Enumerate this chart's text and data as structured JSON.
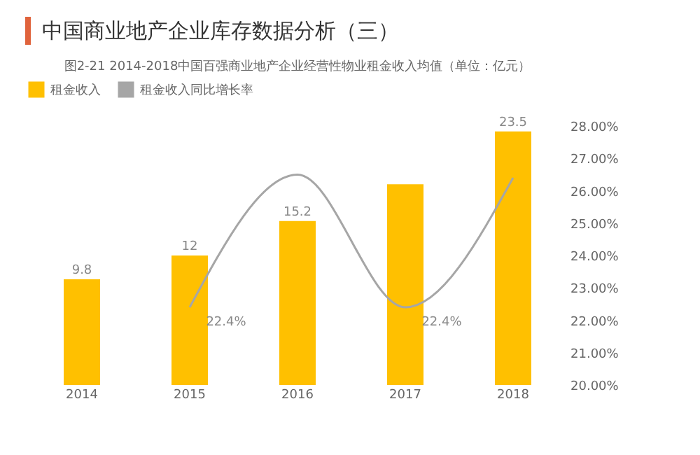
{
  "chart_data": {
    "type": "bar",
    "title": "中国商业地产企业库存数据分析（三）",
    "subtitle": "图2-21 2014-2018中国百强商业地产企业经营性物业租金收入均值（单位：亿元）",
    "categories": [
      "2014",
      "2015",
      "2016",
      "2017",
      "2018"
    ],
    "series": [
      {
        "name": "租金收入",
        "color": "#ffc000",
        "values": [
          9.8,
          12,
          15.2,
          18.6,
          23.5
        ],
        "value_labels": [
          "9.8",
          "12",
          "15.2",
          null,
          "23.5"
        ]
      },
      {
        "name": "租金收入同比增长率",
        "type": "line",
        "axis": "y2",
        "color": "#a6a6a6",
        "values": [
          null,
          22.4,
          26.5,
          22.4,
          26.4
        ],
        "value_labels": [
          null,
          "22.4%",
          null,
          "22.4%",
          null
        ]
      }
    ],
    "y2lim": [
      20,
      28
    ],
    "y2ticks": [
      {
        "value": 20,
        "label": "20.00%"
      },
      {
        "value": 21,
        "label": "21.00%"
      },
      {
        "value": 22,
        "label": "22.00%"
      },
      {
        "value": 23,
        "label": "23.00%"
      },
      {
        "value": 24,
        "label": "24.00%"
      },
      {
        "value": 25,
        "label": "25.00%"
      },
      {
        "value": 26,
        "label": "26.00%"
      },
      {
        "value": 27,
        "label": "27.00%"
      },
      {
        "value": 28,
        "label": "28.00%"
      }
    ],
    "legend": "top",
    "grid": false
  }
}
